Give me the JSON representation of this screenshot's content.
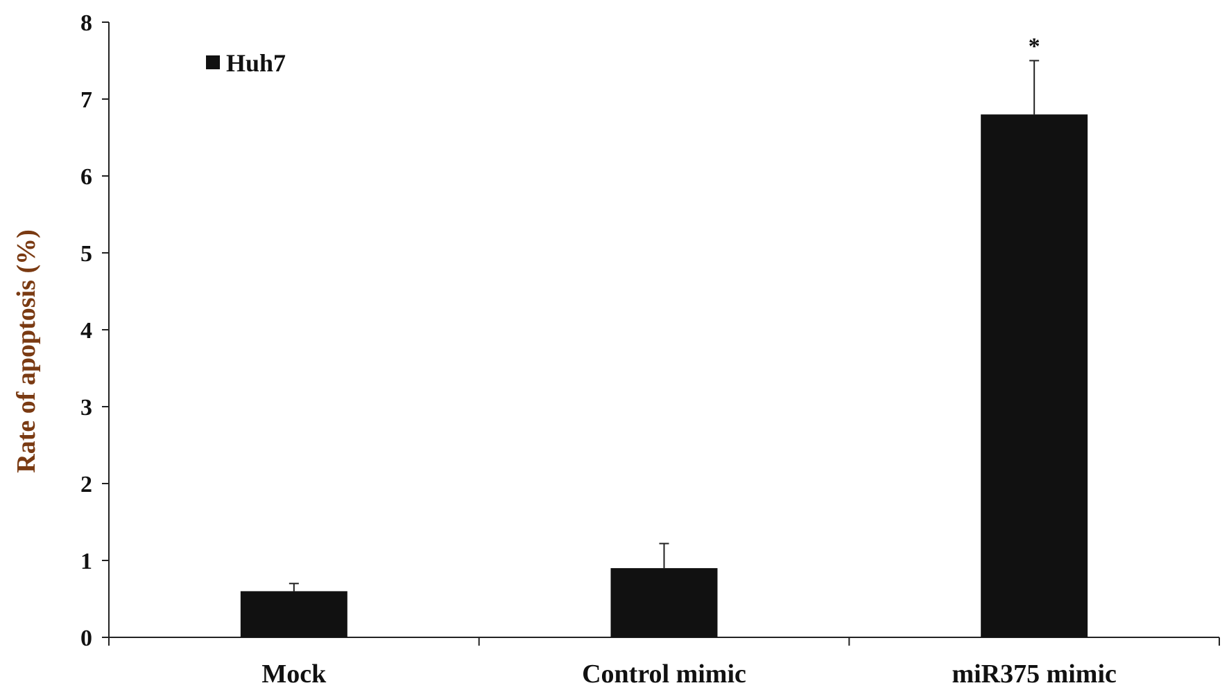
{
  "chart_data": {
    "type": "bar",
    "title": "",
    "xlabel": "",
    "ylabel": "Rate of apoptosis (%)",
    "ylim": [
      0,
      8
    ],
    "yticks": [
      0,
      1,
      2,
      3,
      4,
      5,
      6,
      7,
      8
    ],
    "grid": false,
    "legend_position": "top-left",
    "categories": [
      "Mock",
      "Control mimic",
      "miR375 mimic"
    ],
    "series": [
      {
        "name": "Huh7",
        "color": "#111111",
        "values": [
          0.6,
          0.9,
          6.8
        ],
        "error_upper": [
          0.1,
          0.32,
          0.7
        ]
      }
    ],
    "annotations": [
      {
        "category": "miR375 mimic",
        "text": "*"
      }
    ]
  }
}
